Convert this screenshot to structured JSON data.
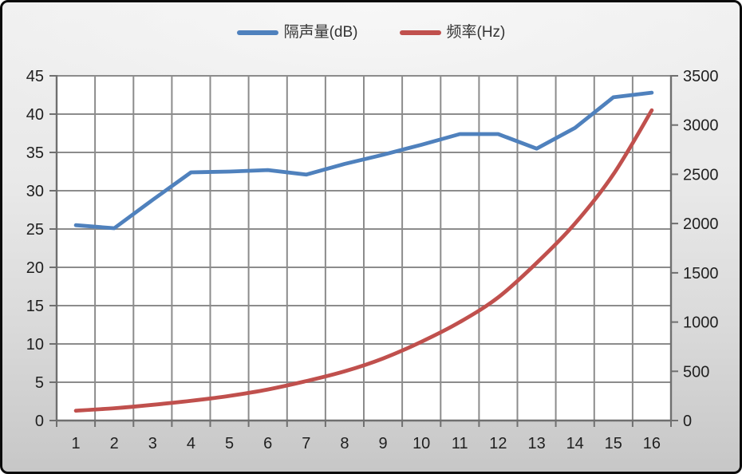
{
  "chart_data": {
    "type": "line",
    "title": "",
    "categories": [
      1,
      2,
      3,
      4,
      5,
      6,
      7,
      8,
      9,
      10,
      11,
      12,
      13,
      14,
      15,
      16
    ],
    "x_tick_labels": [
      "1",
      "2",
      "3",
      "4",
      "5",
      "6",
      "7",
      "8",
      "9",
      "10",
      "11",
      "12",
      "13",
      "14",
      "15",
      "16"
    ],
    "series": [
      {
        "name": "隔声量(dB)",
        "axis": "left",
        "color": "#4F81BD",
        "smooth": false,
        "values": [
          25.5,
          25.1,
          28.8,
          32.4,
          32.5,
          32.7,
          32.1,
          33.5,
          34.7,
          36.0,
          37.4,
          37.4,
          35.5,
          38.2,
          42.2,
          42.8
        ]
      },
      {
        "name": "频率(Hz)",
        "axis": "right",
        "color": "#C0504D",
        "smooth": true,
        "values": [
          100,
          125,
          160,
          200,
          250,
          315,
          400,
          500,
          630,
          800,
          1000,
          1250,
          1600,
          2000,
          2500,
          3150
        ]
      }
    ],
    "left_axis": {
      "min": 0,
      "max": 45,
      "step": 5,
      "tick_labels": [
        "0",
        "5",
        "10",
        "15",
        "20",
        "25",
        "30",
        "35",
        "40",
        "45"
      ]
    },
    "right_axis": {
      "min": 0,
      "max": 3500,
      "step": 500,
      "tick_labels": [
        "0",
        "500",
        "1000",
        "1500",
        "2000",
        "2500",
        "3000",
        "3500"
      ]
    },
    "grid": true,
    "legend_position": "top",
    "colors": {
      "plot_background": "#FFFFFF",
      "gridline": "#8C8C8C",
      "axis_line": "#6F6F6F",
      "tick_text": "#1F1F1F",
      "chart_border": "#0B0B0B"
    }
  }
}
